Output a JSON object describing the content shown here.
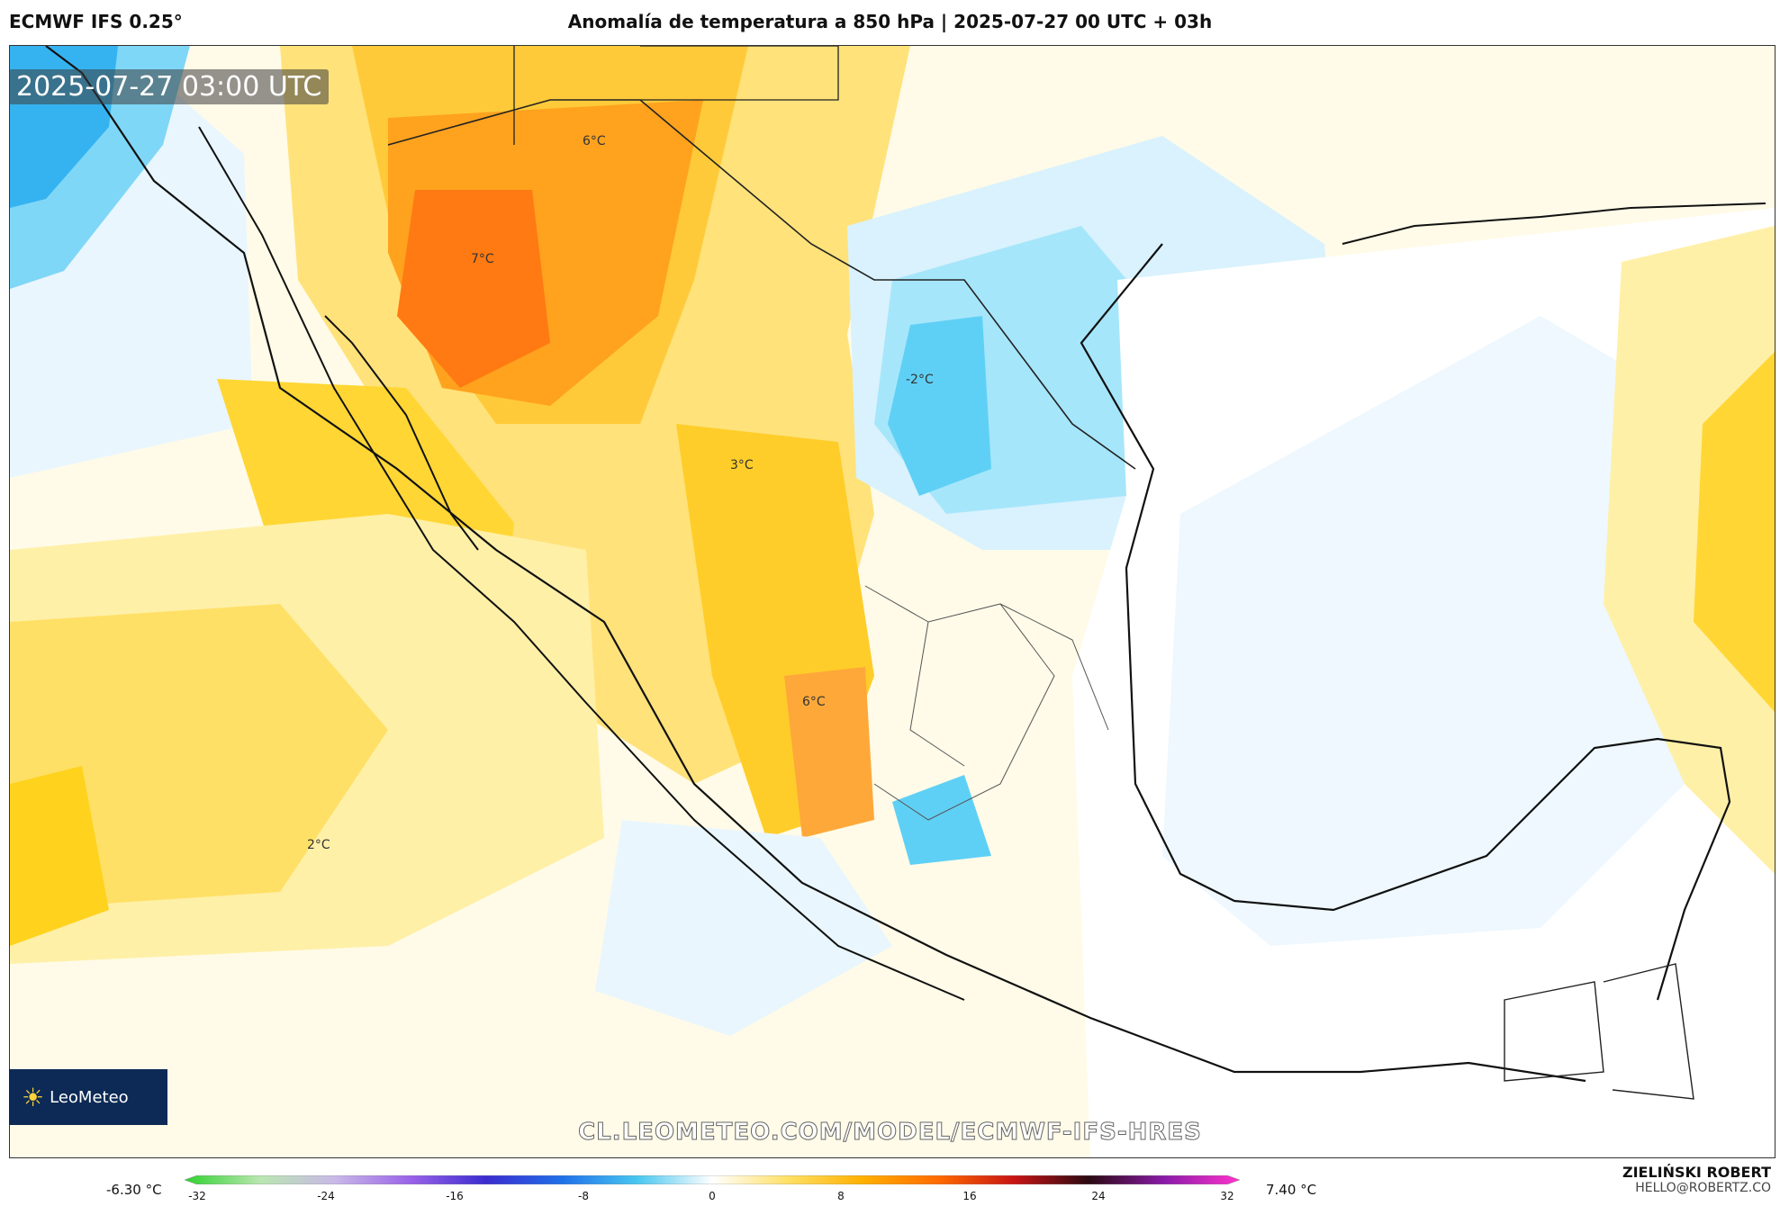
{
  "header": {
    "model": "ECMWF IFS 0.25°",
    "title": "Anomalía de temperatura a 850 hPa | 2025-07-27 00 UTC + 03h"
  },
  "map": {
    "valid_time": "2025-07-27 03:00 UTC",
    "labels": [
      "6°C",
      "7°C",
      "3°C",
      "-2°C",
      "6°C",
      "2°C"
    ],
    "watermark": "CL.LEOMETEO.COM/MODEL/ECMWF-IFS-HRES",
    "logo_text": "LeoMeteo"
  },
  "colorbar": {
    "min_label": "-6.30 °C",
    "max_label": "7.40 °C",
    "ticks": [
      "-32",
      "-24",
      "-16",
      "-8",
      "0",
      "8",
      "16",
      "24",
      "32"
    ],
    "colors": [
      "#2fd12f",
      "#b9e7b0",
      "#c9b8e8",
      "#9a62e8",
      "#3b2ccf",
      "#1f6fe8",
      "#47c6f0",
      "#ffffff",
      "#ffe066",
      "#ffb000",
      "#ff6a00",
      "#c81414",
      "#2a0a12",
      "#8a1aa8",
      "#ff33cc"
    ]
  },
  "credits": {
    "author": "ZIELIŃSKI ROBERT",
    "email": "HELLO@ROBERTZ.CO"
  }
}
